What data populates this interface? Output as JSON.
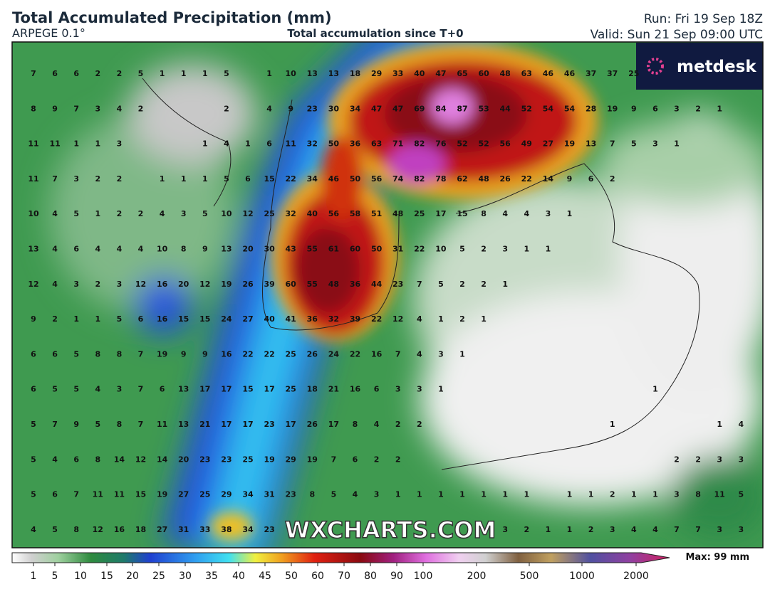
{
  "header": {
    "title": "Total Accumulated Precipitation (mm)",
    "model": "ARPEGE 0.1°",
    "subtitle": "Total accumulation since T+0",
    "run": "Run: Fri 19 Sep 18Z",
    "valid": "Valid: Sun 21 Sep 09:00 UTC"
  },
  "logo": "metdesk",
  "watermark": "WXCHARTS.COM",
  "grid": {
    "rows": [
      [
        7,
        6,
        6,
        2,
        2,
        5,
        1,
        1,
        1,
        5,
        null,
        1,
        10,
        13,
        13,
        18,
        29,
        33,
        40,
        47,
        65,
        60,
        48,
        63,
        46,
        46,
        37,
        37,
        25,
        null,
        null,
        null,
        null,
        null
      ],
      [
        8,
        9,
        7,
        3,
        4,
        2,
        null,
        null,
        null,
        2,
        null,
        4,
        9,
        23,
        30,
        34,
        47,
        47,
        69,
        84,
        87,
        53,
        44,
        52,
        54,
        54,
        28,
        19,
        9,
        6,
        3,
        2,
        1,
        null
      ],
      [
        11,
        11,
        1,
        1,
        3,
        null,
        null,
        null,
        1,
        4,
        1,
        6,
        11,
        32,
        50,
        36,
        63,
        71,
        82,
        76,
        52,
        52,
        56,
        49,
        27,
        19,
        13,
        7,
        5,
        3,
        1,
        null,
        null,
        null
      ],
      [
        11,
        7,
        3,
        2,
        2,
        null,
        1,
        1,
        1,
        5,
        6,
        15,
        22,
        34,
        46,
        50,
        56,
        74,
        82,
        78,
        62,
        48,
        26,
        22,
        14,
        9,
        6,
        2,
        null,
        null,
        null,
        null,
        null,
        null
      ],
      [
        10,
        4,
        5,
        1,
        2,
        2,
        4,
        3,
        5,
        10,
        12,
        25,
        32,
        40,
        56,
        58,
        51,
        48,
        25,
        17,
        15,
        8,
        4,
        4,
        3,
        1,
        null,
        null,
        null,
        null,
        null,
        null,
        null,
        null
      ],
      [
        13,
        4,
        6,
        4,
        4,
        4,
        10,
        8,
        9,
        13,
        20,
        30,
        43,
        55,
        61,
        60,
        50,
        31,
        22,
        10,
        5,
        2,
        3,
        1,
        1,
        null,
        null,
        null,
        null,
        null,
        null,
        null,
        null,
        null
      ],
      [
        12,
        4,
        3,
        2,
        3,
        12,
        16,
        20,
        12,
        19,
        26,
        39,
        60,
        55,
        48,
        36,
        44,
        23,
        7,
        5,
        2,
        2,
        1,
        null,
        null,
        null,
        null,
        null,
        null,
        null,
        null,
        null,
        null,
        null
      ],
      [
        9,
        2,
        1,
        1,
        5,
        6,
        16,
        15,
        15,
        24,
        27,
        40,
        41,
        36,
        32,
        39,
        22,
        12,
        4,
        1,
        2,
        1,
        null,
        null,
        null,
        null,
        null,
        null,
        null,
        null,
        null,
        null,
        null,
        null
      ],
      [
        6,
        6,
        5,
        8,
        8,
        7,
        19,
        9,
        9,
        16,
        22,
        22,
        25,
        26,
        24,
        22,
        16,
        7,
        4,
        3,
        1,
        null,
        null,
        null,
        null,
        null,
        null,
        null,
        null,
        null,
        null,
        null,
        null,
        null
      ],
      [
        6,
        5,
        5,
        4,
        3,
        7,
        6,
        13,
        17,
        17,
        15,
        17,
        25,
        18,
        21,
        16,
        6,
        3,
        3,
        1,
        null,
        null,
        null,
        null,
        null,
        null,
        null,
        null,
        null,
        1,
        null,
        null,
        null,
        null
      ],
      [
        5,
        7,
        9,
        5,
        8,
        7,
        11,
        13,
        21,
        17,
        17,
        23,
        17,
        26,
        17,
        8,
        4,
        2,
        2,
        null,
        null,
        null,
        null,
        null,
        null,
        null,
        null,
        1,
        null,
        null,
        null,
        null,
        1,
        4
      ],
      [
        5,
        4,
        6,
        8,
        14,
        12,
        14,
        20,
        23,
        23,
        25,
        19,
        29,
        19,
        7,
        6,
        2,
        2,
        null,
        null,
        null,
        null,
        null,
        null,
        null,
        null,
        null,
        null,
        null,
        null,
        2,
        2,
        3,
        3
      ],
      [
        5,
        6,
        7,
        11,
        11,
        15,
        19,
        27,
        25,
        29,
        34,
        31,
        23,
        8,
        5,
        4,
        3,
        1,
        1,
        1,
        1,
        1,
        1,
        1,
        null,
        1,
        1,
        2,
        1,
        1,
        3,
        8,
        11,
        5
      ],
      [
        4,
        5,
        8,
        12,
        16,
        18,
        27,
        31,
        33,
        38,
        34,
        23,
        null,
        null,
        null,
        null,
        null,
        null,
        null,
        null,
        null,
        null,
        3,
        2,
        1,
        1,
        2,
        3,
        4,
        4,
        7,
        7,
        3,
        3
      ]
    ]
  },
  "colorbar": {
    "ticks": [
      1,
      5,
      10,
      15,
      20,
      25,
      30,
      35,
      40,
      45,
      50,
      60,
      70,
      80,
      90,
      100,
      200,
      500,
      1000,
      2000
    ],
    "max_label": "Max: 99 mm"
  }
}
